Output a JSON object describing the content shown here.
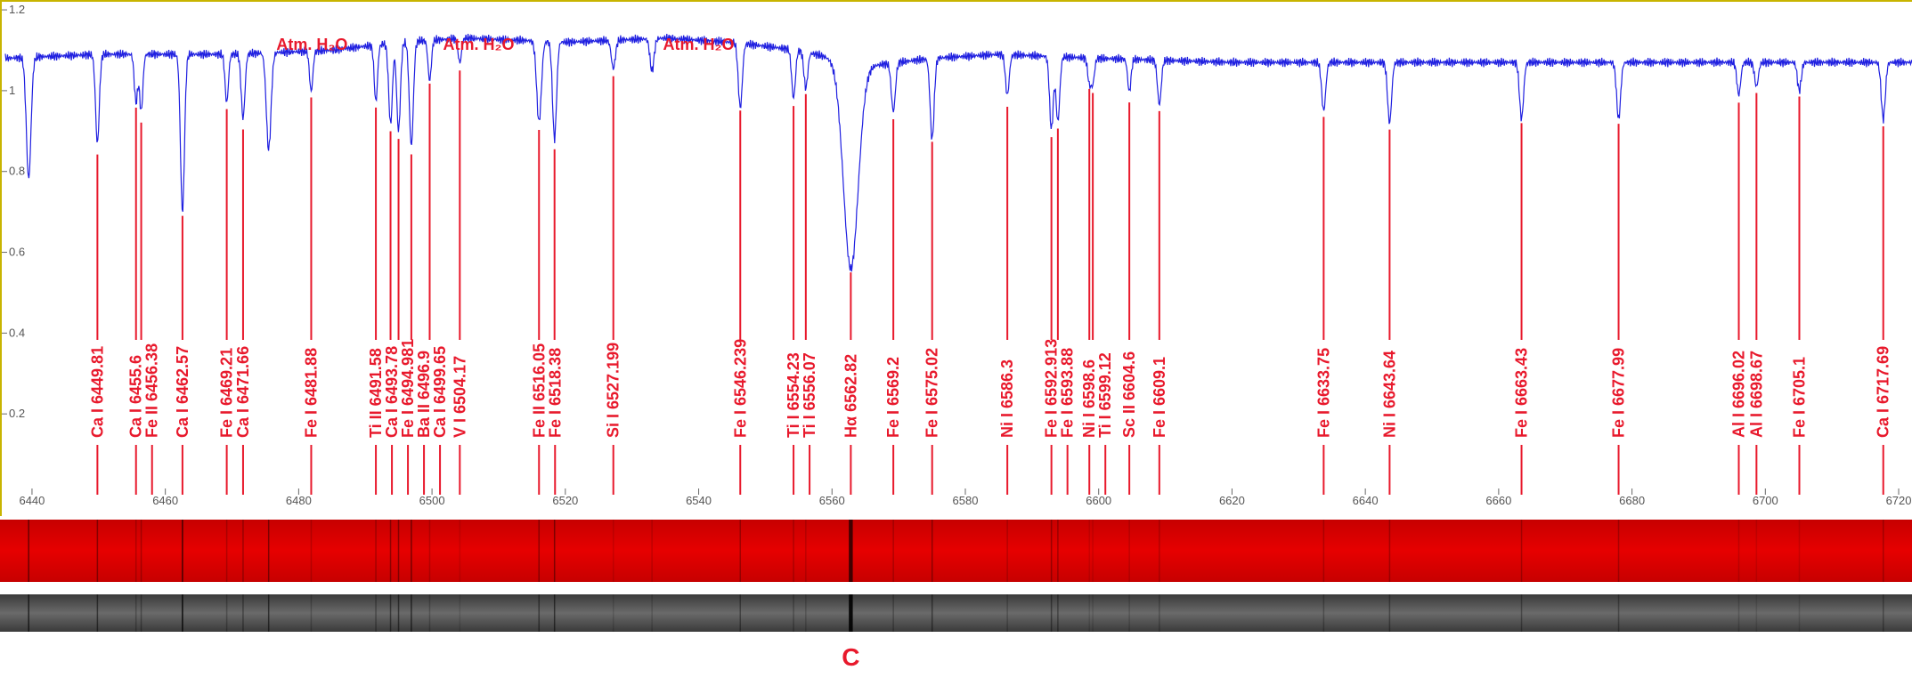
{
  "chart_data": {
    "type": "line",
    "title": "",
    "xlabel": "",
    "ylabel": "",
    "xlim": [
      6436,
      6722
    ],
    "ylim": [
      0,
      1.22
    ],
    "grid": false,
    "xticks": [
      6440,
      6460,
      6480,
      6500,
      6520,
      6540,
      6560,
      6580,
      6600,
      6620,
      6640,
      6660,
      6680,
      6700,
      6720
    ],
    "yticks": [
      0.2,
      0.4,
      0.6,
      0.8,
      1,
      1.2
    ],
    "ytick_labels": [
      "0.2",
      "0.4",
      "0.6",
      "0.8",
      "1",
      "1.2"
    ],
    "series_color": "#1f1fe0",
    "label_color": "#e8192c",
    "continuum": [
      [
        6436,
        1.08
      ],
      [
        6450,
        1.09
      ],
      [
        6470,
        1.09
      ],
      [
        6485,
        1.1
      ],
      [
        6495,
        1.12
      ],
      [
        6505,
        1.13
      ],
      [
        6520,
        1.12
      ],
      [
        6535,
        1.13
      ],
      [
        6545,
        1.12
      ],
      [
        6555,
        1.1
      ],
      [
        6565,
        1.06
      ],
      [
        6575,
        1.08
      ],
      [
        6585,
        1.09
      ],
      [
        6600,
        1.08
      ],
      [
        6620,
        1.07
      ],
      [
        6650,
        1.07
      ],
      [
        6680,
        1.07
      ],
      [
        6700,
        1.07
      ],
      [
        6722,
        1.07
      ]
    ],
    "features": [
      {
        "x": 6439.5,
        "depth": 0.3,
        "width": 0.35
      },
      {
        "x": 6449.81,
        "depth": 0.22,
        "width": 0.28
      },
      {
        "x": 6455.6,
        "depth": 0.12,
        "width": 0.25
      },
      {
        "x": 6456.38,
        "depth": 0.14,
        "width": 0.25
      },
      {
        "x": 6462.57,
        "depth": 0.39,
        "width": 0.3
      },
      {
        "x": 6469.21,
        "depth": 0.12,
        "width": 0.25
      },
      {
        "x": 6471.66,
        "depth": 0.16,
        "width": 0.28
      },
      {
        "x": 6475.5,
        "depth": 0.24,
        "width": 0.35
      },
      {
        "x": 6481.88,
        "depth": 0.1,
        "width": 0.25
      },
      {
        "x": 6491.58,
        "depth": 0.14,
        "width": 0.25
      },
      {
        "x": 6493.78,
        "depth": 0.2,
        "width": 0.28
      },
      {
        "x": 6494.981,
        "depth": 0.22,
        "width": 0.28
      },
      {
        "x": 6496.9,
        "depth": 0.26,
        "width": 0.3
      },
      {
        "x": 6499.65,
        "depth": 0.1,
        "width": 0.25
      },
      {
        "x": 6504.17,
        "depth": 0.06,
        "width": 0.25
      },
      {
        "x": 6516.05,
        "depth": 0.2,
        "width": 0.35
      },
      {
        "x": 6518.38,
        "depth": 0.24,
        "width": 0.3
      },
      {
        "x": 6527.199,
        "depth": 0.07,
        "width": 0.3
      },
      {
        "x": 6533,
        "depth": 0.08,
        "width": 0.3
      },
      {
        "x": 6546.239,
        "depth": 0.16,
        "width": 0.3
      },
      {
        "x": 6554.23,
        "depth": 0.12,
        "width": 0.28
      },
      {
        "x": 6556.07,
        "depth": 0.09,
        "width": 0.28
      },
      {
        "x": 6562.82,
        "depth": 0.51,
        "width": 1.1
      },
      {
        "x": 6569.2,
        "depth": 0.12,
        "width": 0.3
      },
      {
        "x": 6575.02,
        "depth": 0.2,
        "width": 0.3
      },
      {
        "x": 6586.3,
        "depth": 0.1,
        "width": 0.28
      },
      {
        "x": 6592.913,
        "depth": 0.18,
        "width": 0.28
      },
      {
        "x": 6593.88,
        "depth": 0.16,
        "width": 0.28
      },
      {
        "x": 6598.6,
        "depth": 0.06,
        "width": 0.25
      },
      {
        "x": 6599.12,
        "depth": 0.06,
        "width": 0.25
      },
      {
        "x": 6604.6,
        "depth": 0.08,
        "width": 0.25
      },
      {
        "x": 6609.1,
        "depth": 0.11,
        "width": 0.28
      },
      {
        "x": 6633.75,
        "depth": 0.12,
        "width": 0.3
      },
      {
        "x": 6643.64,
        "depth": 0.15,
        "width": 0.3
      },
      {
        "x": 6663.43,
        "depth": 0.14,
        "width": 0.3
      },
      {
        "x": 6677.99,
        "depth": 0.14,
        "width": 0.3
      },
      {
        "x": 6696.02,
        "depth": 0.08,
        "width": 0.28
      },
      {
        "x": 6698.67,
        "depth": 0.06,
        "width": 0.28
      },
      {
        "x": 6705.1,
        "depth": 0.07,
        "width": 0.28
      },
      {
        "x": 6717.69,
        "depth": 0.14,
        "width": 0.3
      }
    ],
    "line_ids": [
      {
        "label": "Ca I  6449.81",
        "x": 6449.81
      },
      {
        "label": "Ca I  6455.6",
        "x": 6455.6
      },
      {
        "label": "Fe II  6456.38",
        "x": 6456.38
      },
      {
        "label": "Ca I  6462.57",
        "x": 6462.57
      },
      {
        "label": "Fe I  6469.21",
        "x": 6469.21
      },
      {
        "label": "Ca I  6471.66",
        "x": 6471.66
      },
      {
        "label": "Fe I  6481.88",
        "x": 6481.88
      },
      {
        "label": "Ti II  6491.58",
        "x": 6491.58
      },
      {
        "label": "Ca I  6493.78",
        "x": 6493.78
      },
      {
        "label": "Fe I  6494.981",
        "x": 6494.981
      },
      {
        "label": "Ba II  6496.9",
        "x": 6496.9
      },
      {
        "label": "Ca I  6499.65",
        "x": 6499.65
      },
      {
        "label": "V I  6504.17",
        "x": 6504.17
      },
      {
        "label": "Fe II  6516.05",
        "x": 6516.05
      },
      {
        "label": "Fe I  6518.38",
        "x": 6518.38
      },
      {
        "label": "Si I  6527.199",
        "x": 6527.199
      },
      {
        "label": "Fe I  6546.239",
        "x": 6546.239
      },
      {
        "label": "Ti I  6554.23",
        "x": 6554.23
      },
      {
        "label": "Ti I  6556.07",
        "x": 6556.07
      },
      {
        "label": "Hα  6562.82",
        "x": 6562.82
      },
      {
        "label": "Fe I  6569.2",
        "x": 6569.2
      },
      {
        "label": "Fe I  6575.02",
        "x": 6575.02
      },
      {
        "label": "Ni I  6586.3",
        "x": 6586.3
      },
      {
        "label": "Fe I  6592.913",
        "x": 6592.913
      },
      {
        "label": "Fe I  6593.88",
        "x": 6593.88
      },
      {
        "label": "Ni I  6598.6",
        "x": 6598.6
      },
      {
        "label": "Ti I  6599.12",
        "x": 6599.12
      },
      {
        "label": "Sc II  6604.6",
        "x": 6604.6
      },
      {
        "label": "Fe I  6609.1",
        "x": 6609.1
      },
      {
        "label": "Fe I  6633.75",
        "x": 6633.75
      },
      {
        "label": "Ni I  6643.64",
        "x": 6643.64
      },
      {
        "label": "Fe I  6663.43",
        "x": 6663.43
      },
      {
        "label": "Fe I  6677.99",
        "x": 6677.99
      },
      {
        "label": "Al I  6696.02",
        "x": 6696.02
      },
      {
        "label": "Al I  6698.67",
        "x": 6698.67
      },
      {
        "label": "Fe I  6705.1",
        "x": 6705.1
      },
      {
        "label": "Ca I  6717.69",
        "x": 6717.69
      }
    ],
    "annotations": [
      {
        "text": "Atm. H₂O",
        "x": 6482
      },
      {
        "text": "Atm. H₂O",
        "x": 6507
      },
      {
        "text": "Atm. H₂O",
        "x": 6540
      }
    ],
    "marker_label": "C",
    "marker_x": 6562.82
  }
}
